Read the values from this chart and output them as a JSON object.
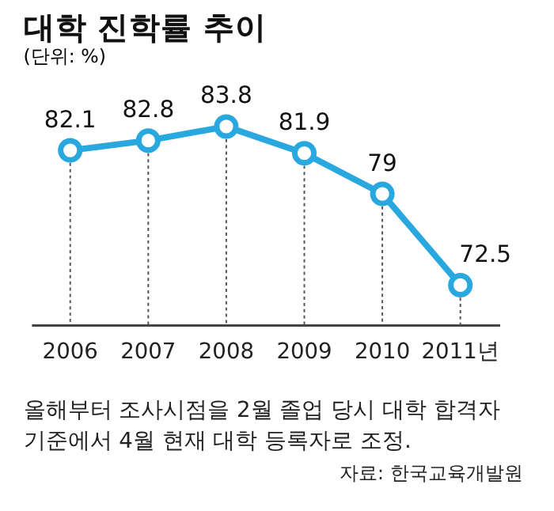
{
  "chart_data": {
    "type": "line",
    "title": "대학 진학률 추이",
    "subtitle": "(단위: %)",
    "categories": [
      "2006",
      "2007",
      "2008",
      "2009",
      "2010",
      "2011년"
    ],
    "series": [
      {
        "color": "#29a8e0",
        "values": [
          82.1,
          82.8,
          83.8,
          81.9,
          79,
          72.5
        ]
      }
    ],
    "data_labels": true,
    "marker": "circle",
    "line_style": "solid",
    "grid": "x",
    "annotations": [
      "올해부터 조사시점을 2월 졸업 당시 대학 합격자 기준에서 4월 현재 대학 등록자로 조정.",
      "자료: 한국교육개발원"
    ]
  }
}
